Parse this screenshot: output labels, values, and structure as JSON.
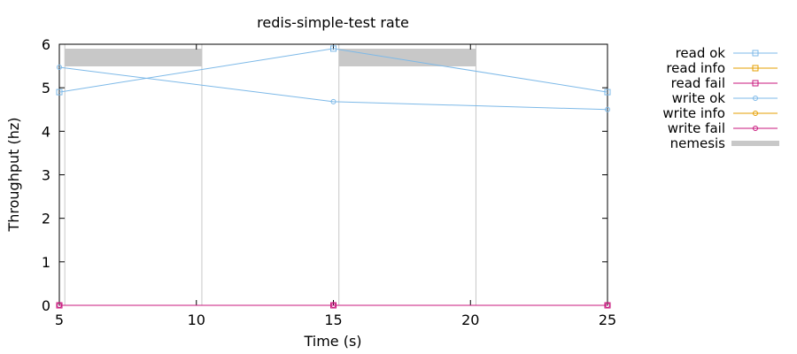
{
  "chart_data": {
    "type": "line",
    "title": "redis-simple-test rate",
    "xlabel": "Time (s)",
    "ylabel": "Throughput (hz)",
    "xlim": [
      5,
      25
    ],
    "ylim": [
      0,
      6
    ],
    "xticks": [
      5,
      10,
      15,
      20,
      25
    ],
    "yticks": [
      0,
      1,
      2,
      3,
      4,
      5,
      6
    ],
    "legend_position": "right",
    "series": [
      {
        "name": "read ok",
        "color": "#7db9e8",
        "marker": "square",
        "points": [
          [
            5,
            4.9
          ],
          [
            15,
            5.9
          ],
          [
            25,
            4.9
          ]
        ]
      },
      {
        "name": "read info",
        "color": "#e69f00",
        "marker": "square",
        "points": []
      },
      {
        "name": "read fail",
        "color": "#c8177d",
        "marker": "square",
        "points": [
          [
            5,
            0
          ],
          [
            15,
            0
          ],
          [
            25,
            0
          ]
        ]
      },
      {
        "name": "write ok",
        "color": "#7db9e8",
        "marker": "circle",
        "points": [
          [
            5,
            5.47
          ],
          [
            15,
            4.68
          ],
          [
            25,
            4.5
          ]
        ]
      },
      {
        "name": "write info",
        "color": "#e69f00",
        "marker": "circle",
        "points": []
      },
      {
        "name": "write fail",
        "color": "#c8177d",
        "marker": "circle",
        "points": [
          [
            5,
            0
          ],
          [
            15,
            0
          ],
          [
            25,
            0
          ]
        ]
      }
    ],
    "nemesis": {
      "name": "nemesis",
      "color": "#c8c8c8",
      "intervals": [
        [
          5.2,
          10.2
        ],
        [
          15.2,
          20.2
        ]
      ]
    }
  }
}
